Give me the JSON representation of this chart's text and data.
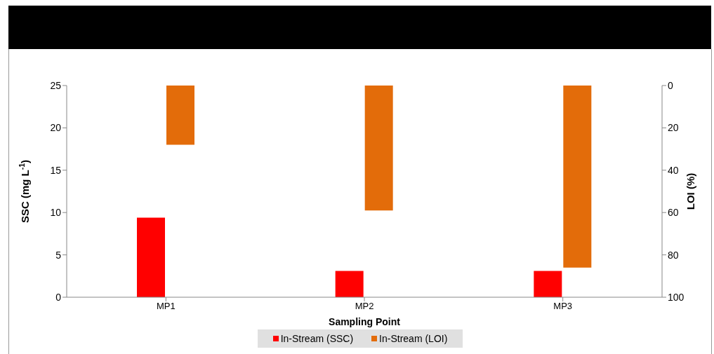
{
  "chart_data": {
    "type": "bar",
    "xlabel": "Sampling Point",
    "ylabel": "SSC (mg L$^{-1}$)",
    "y2label": "LOI (%)",
    "categories": [
      "MP1",
      "MP2",
      "MP3"
    ],
    "series": [
      {
        "name": "In-Stream (SSC)",
        "color": "#ff0000",
        "values": [
          9.4,
          3.1,
          3.1
        ]
      },
      {
        "name": "In-Stream (LOI)",
        "color": "#e36c0a",
        "values": [
          28,
          59,
          86
        ],
        "axis": "y2"
      }
    ],
    "ylim": [
      0,
      25
    ],
    "yticks": [
      0,
      5,
      10,
      15,
      20,
      25
    ],
    "y2lim": [
      100,
      0
    ],
    "y2ticks": [
      0,
      20,
      40,
      60,
      80,
      100
    ],
    "grid": false,
    "legend": "bottom"
  }
}
